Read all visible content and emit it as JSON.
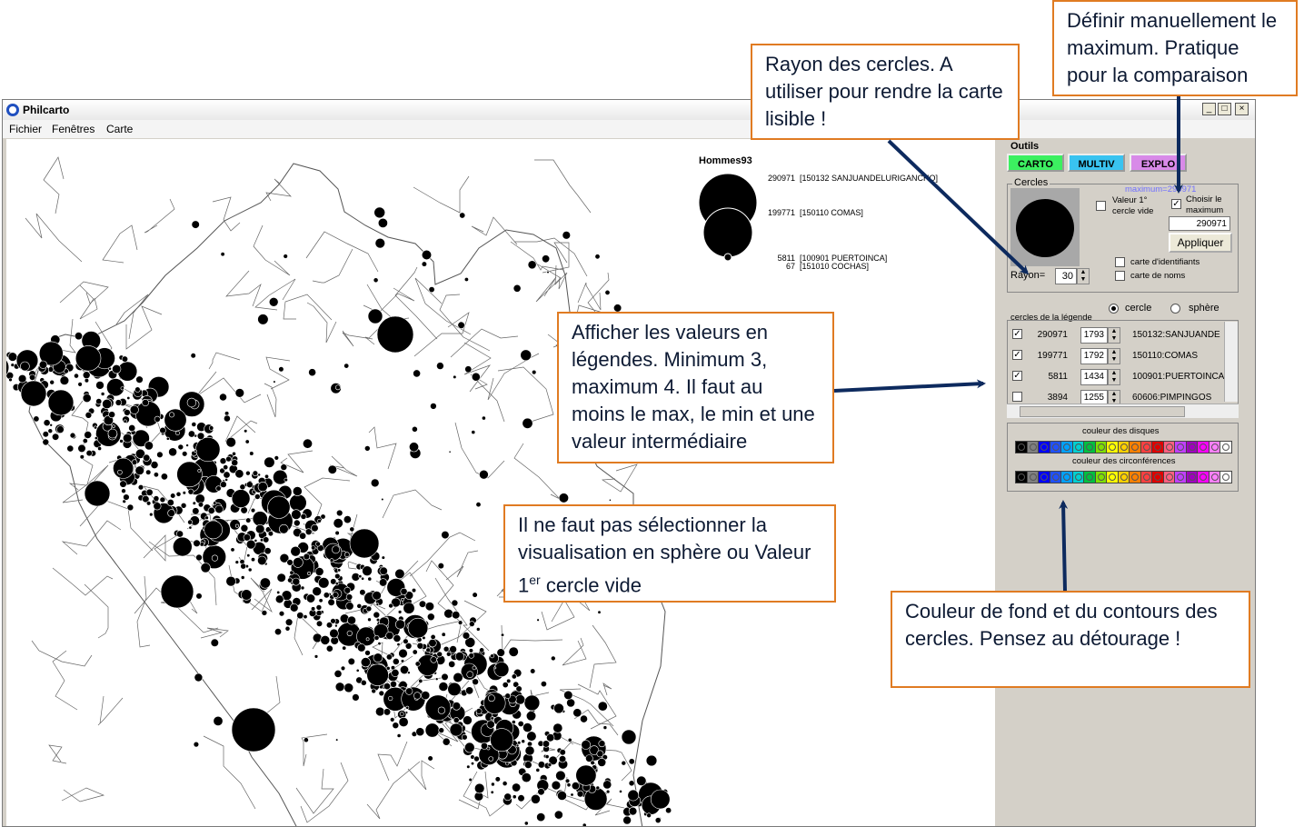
{
  "window": {
    "title": "Philcarto",
    "menu": [
      "Fichier",
      "Fenêtres",
      "Carte"
    ]
  },
  "map": {
    "legend_title": "Hommes93",
    "legend_rows": [
      {
        "value": "290971",
        "label": "[150132 SANJUANDELURIGANCHO]"
      },
      {
        "value": "199771",
        "label": "[150110 COMAS]"
      },
      {
        "value": "5811",
        "label": "[100901 PUERTOINCA]"
      },
      {
        "value": "67",
        "label": "[151010 COCHAS]"
      }
    ]
  },
  "panel": {
    "title": "Outils",
    "tabs": [
      {
        "label": "CARTO",
        "color": "#3cf060"
      },
      {
        "label": "MULTIV",
        "color": "#39c3f0"
      },
      {
        "label": "EXPLO",
        "color": "#d88ae8"
      }
    ],
    "cercles": {
      "group_label": "Cercles",
      "maximum_label": "maximum=290971",
      "valeur_vide_label": "Valeur 1° cercle vide",
      "choisir_max_label": "Choisir le maximum",
      "choisir_max_checked": true,
      "max_value": "290971",
      "apply_label": "Appliquer",
      "rayon_label": "Rayon=",
      "rayon_value": "30",
      "carte_identifiants": "carte d'identifiants",
      "carte_noms": "carte de noms"
    },
    "legend_list": {
      "label": "cercles de la légende",
      "radio_cercle": "cercle",
      "radio_sphere": "sphère",
      "selected": "cercle",
      "rows": [
        {
          "checked": true,
          "value": "290971",
          "size": "1793",
          "label": "150132:SANJUANDE"
        },
        {
          "checked": true,
          "value": "199771",
          "size": "1792",
          "label": "150110:COMAS"
        },
        {
          "checked": true,
          "value": "5811",
          "size": "1434",
          "label": "100901:PUERTOINCA"
        },
        {
          "checked": false,
          "value": "3894",
          "size": "1255",
          "label": "60606:PIMPINGOS"
        }
      ]
    },
    "couleur_disques": "couleur des disques",
    "couleur_circonferences": "couleur des circonférences",
    "palette": [
      "#000000",
      "#808080",
      "#0000ff",
      "#2050ff",
      "#00a0ff",
      "#00d0d0",
      "#00c040",
      "#80e000",
      "#ffff00",
      "#ffd000",
      "#ff8000",
      "#ff4040",
      "#e00000",
      "#ff6080",
      "#c040ff",
      "#a000c0",
      "#ff00ff",
      "#ff80ff",
      "#ffffff"
    ]
  },
  "annotations": {
    "max": "Définir manuellement le maximum. Pratique pour la comparaison",
    "rayon": "Rayon des cercles. A utiliser pour rendre la carte lisible !",
    "valeurs": "Afficher les valeurs en légendes. Minimum 3, maximum 4. Il faut au moins le max, le min et une valeur intermédiaire",
    "sphere_line1": "Il ne faut pas sélectionner la visualisation en sphère ou Valeur 1",
    "sphere_sup": "er",
    "sphere_line2": " cercle vide",
    "couleur": "Couleur de fond et du contours des cercles. Pensez au détourage !"
  }
}
